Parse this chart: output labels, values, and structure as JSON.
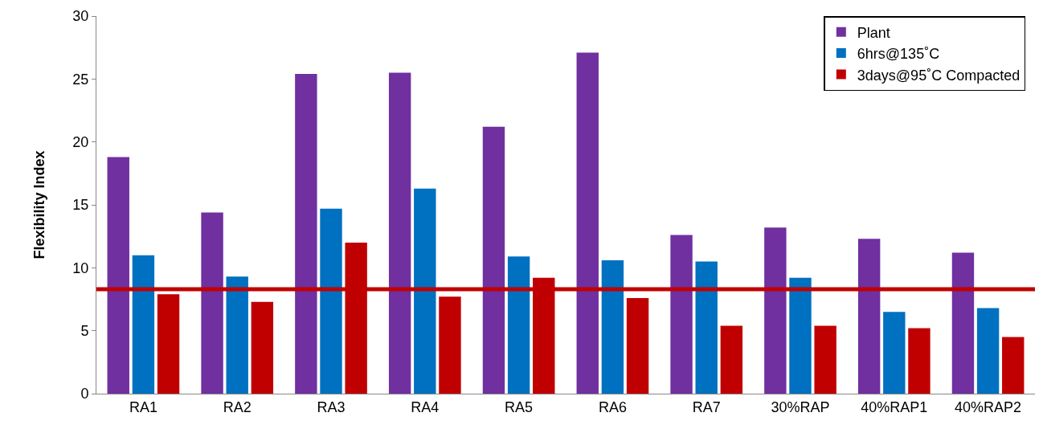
{
  "chart_data": {
    "type": "bar",
    "ylabel": "Flexibility Index",
    "categories": [
      "RA1",
      "RA2",
      "RA3",
      "RA4",
      "RA5",
      "RA6",
      "RA7",
      "30%RAP",
      "40%RAP1",
      "40%RAP2"
    ],
    "series": [
      {
        "name": "Plant",
        "color": "#7030a0",
        "values": [
          18.8,
          14.4,
          25.4,
          25.5,
          21.2,
          27.1,
          12.6,
          13.2,
          12.3,
          11.2
        ]
      },
      {
        "name": "6hrs@135˚C",
        "color": "#0070c0",
        "values": [
          11.0,
          9.3,
          14.7,
          16.3,
          10.9,
          10.6,
          10.5,
          9.2,
          6.5,
          6.8
        ]
      },
      {
        "name": "3days@95˚C Compacted",
        "color": "#c00000",
        "values": [
          7.9,
          7.3,
          12.0,
          7.7,
          9.2,
          7.6,
          5.4,
          5.4,
          5.2,
          4.5
        ]
      }
    ],
    "ylim": [
      0,
      30
    ],
    "yticks": [
      0,
      5,
      10,
      15,
      20,
      25,
      30
    ],
    "grid": false,
    "legend": "top right",
    "ref_lines": [
      {
        "axis": "y",
        "value": 8.3,
        "color": "#c00000"
      }
    ]
  }
}
